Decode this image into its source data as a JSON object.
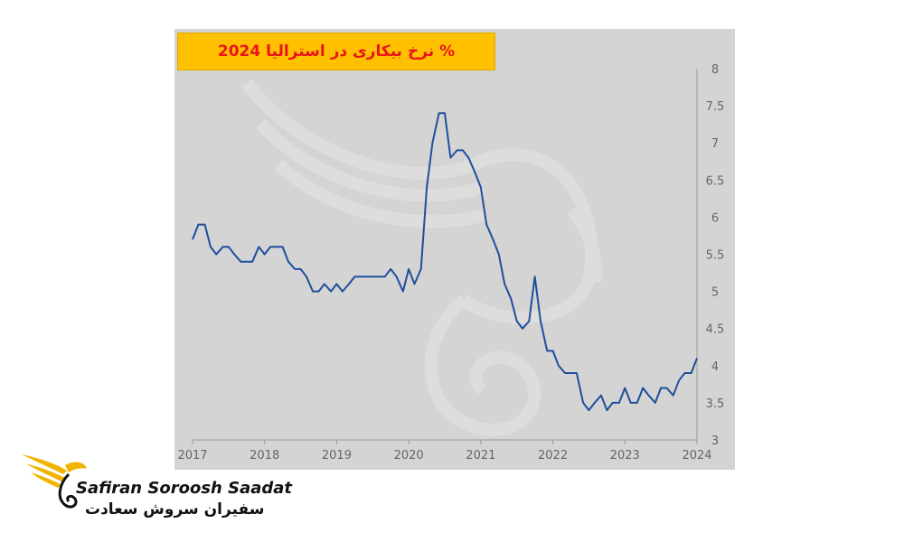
{
  "title": "% نرخ بیکاری در استرالیا 2024",
  "brand": {
    "name_en": "Safiran Soroosh Saadat",
    "name_fa": "سفیران سروش سعادت"
  },
  "colors": {
    "panel": "#d4d4d4",
    "line": "#1f4e9c",
    "title_bg": "#ffc000",
    "title_text": "#e8141b",
    "logo_gold": "#f0b400"
  },
  "chart_data": {
    "type": "line",
    "title": "% نرخ بیکاری در استرالیا 2024",
    "xlabel": "",
    "ylabel": "",
    "xlim": [
      2017,
      2024
    ],
    "ylim": [
      3,
      8
    ],
    "x_ticks": [
      "2017",
      "2018",
      "2019",
      "2020",
      "2021",
      "2022",
      "2023",
      "2024"
    ],
    "y_ticks": [
      "3",
      "3.5",
      "4",
      "4.5",
      "5",
      "5.5",
      "6",
      "6.5",
      "7",
      "7.5",
      "8"
    ],
    "y_axis_position": "right",
    "grid": false,
    "series": [
      {
        "x": [
          2017.0,
          2017.08,
          2017.17,
          2017.25,
          2017.33,
          2017.42,
          2017.5,
          2017.58,
          2017.67,
          2017.75,
          2017.83,
          2017.92,
          2018.0,
          2018.08,
          2018.17,
          2018.25,
          2018.33,
          2018.42,
          2018.5,
          2018.58,
          2018.67,
          2018.75,
          2018.83,
          2018.92,
          2019.0,
          2019.08,
          2019.17,
          2019.25,
          2019.33,
          2019.42,
          2019.5,
          2019.58,
          2019.67,
          2019.75,
          2019.83,
          2019.92,
          2020.0,
          2020.08,
          2020.17,
          2020.25,
          2020.33,
          2020.42,
          2020.5,
          2020.58,
          2020.67,
          2020.75,
          2020.83,
          2020.92,
          2021.0,
          2021.08,
          2021.17,
          2021.25,
          2021.33,
          2021.42,
          2021.5,
          2021.58,
          2021.67,
          2021.75,
          2021.83,
          2021.92,
          2022.0,
          2022.08,
          2022.17,
          2022.25,
          2022.33,
          2022.42,
          2022.5,
          2022.58,
          2022.67,
          2022.75,
          2022.83,
          2022.92,
          2023.0,
          2023.08,
          2023.17,
          2023.25,
          2023.33,
          2023.42,
          2023.5,
          2023.58,
          2023.67,
          2023.75,
          2023.83,
          2023.92,
          2024.0
        ],
        "values": [
          5.7,
          5.9,
          5.9,
          5.6,
          5.5,
          5.6,
          5.6,
          5.5,
          5.4,
          5.4,
          5.4,
          5.6,
          5.5,
          5.6,
          5.6,
          5.6,
          5.4,
          5.3,
          5.3,
          5.2,
          5.0,
          5.0,
          5.1,
          5.0,
          5.1,
          5.0,
          5.1,
          5.2,
          5.2,
          5.2,
          5.2,
          5.2,
          5.2,
          5.3,
          5.2,
          5.0,
          5.3,
          5.1,
          5.3,
          6.4,
          7.0,
          7.4,
          7.4,
          6.8,
          6.9,
          6.9,
          6.8,
          6.6,
          6.4,
          5.9,
          5.7,
          5.5,
          5.1,
          4.9,
          4.6,
          4.5,
          4.6,
          5.2,
          4.6,
          4.2,
          4.2,
          4.0,
          3.9,
          3.9,
          3.9,
          3.5,
          3.4,
          3.5,
          3.6,
          3.4,
          3.5,
          3.5,
          3.7,
          3.5,
          3.5,
          3.7,
          3.6,
          3.5,
          3.7,
          3.7,
          3.6,
          3.8,
          3.9,
          3.9,
          4.1
        ]
      }
    ]
  }
}
